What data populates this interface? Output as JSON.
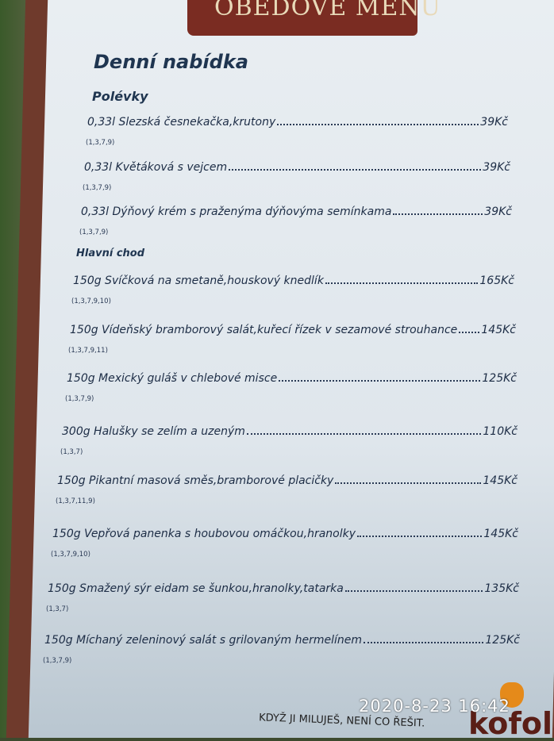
{
  "banner": "OBĚDOVÉ MENU",
  "title": "Denní nabídka",
  "sections": [
    {
      "label": "Polévky",
      "items": [
        {
          "name": "0,33l Slezská česnekačka,krutony",
          "price": "39Kč",
          "allergens": "(1,3,7,9)"
        },
        {
          "name": "0,33l Květáková s vejcem",
          "price": "39Kč",
          "allergens": "(1,3,7,9)"
        },
        {
          "name": "0,33l Dýňový krém s praženýma dýňovýma semínkama",
          "price": "39Kč",
          "allergens": "(1,3,7,9)"
        }
      ]
    },
    {
      "label": "Hlavní chod",
      "items": [
        {
          "name": "150g Svíčková na smetaně,houskový knedlík",
          "price": "165Kč",
          "allergens": "(1,3,7,9,10)"
        },
        {
          "name": "150g Vídeňský bramborový salát,kuřecí řízek v sezamové strouhance",
          "price": "145Kč",
          "allergens": "(1,3,7,9,11)"
        },
        {
          "name": "150g Mexický guláš v chlebové misce",
          "price": "125Kč",
          "allergens": "(1,3,7,9)"
        },
        {
          "name": "300g Halušky se zelím a uzeným",
          "price": "110Kč",
          "allergens": "(1,3,7)"
        },
        {
          "name": "150g Pikantní masová směs,bramborové placičky",
          "price": "145Kč",
          "allergens": "(1,3,7,11,9)"
        },
        {
          "name": "150g Vepřová panenka s houbovou omáčkou,hranolky",
          "price": "145Kč",
          "allergens": "(1,3,7,9,10)"
        },
        {
          "name": "150g Smažený sýr eidam se šunkou,hranolky,tatarka",
          "price": "135Kč",
          "allergens": "(1,3,7)"
        },
        {
          "name": "150g Míchaný zeleninový salát s grilovaným hermelínem",
          "price": "125Kč",
          "allergens": "(1,3,7,9)"
        }
      ]
    }
  ],
  "footer": {
    "slogan": "KDYŽ JI MILUJEŠ, NENÍ CO ŘEŠIT.",
    "brand": "kofola",
    "timestamp": "2020-8-23 16:42"
  }
}
